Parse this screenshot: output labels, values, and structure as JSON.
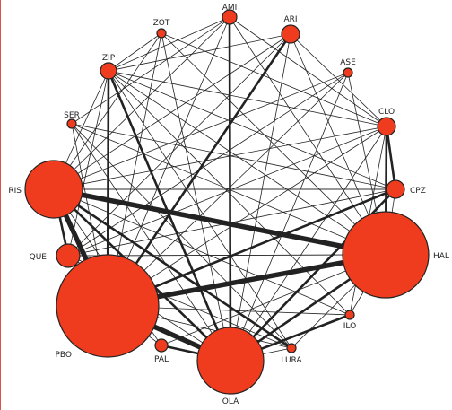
{
  "network": {
    "node_color": "#f03c1e",
    "edge_color": "#222222",
    "nodes": [
      {
        "id": "AMI",
        "label": "AMI"
      },
      {
        "id": "ARI",
        "label": "ARI"
      },
      {
        "id": "ZOT",
        "label": "ZOT"
      },
      {
        "id": "ASE",
        "label": "ASE"
      },
      {
        "id": "ZIP",
        "label": "ZIP"
      },
      {
        "id": "CLO",
        "label": "CLO"
      },
      {
        "id": "SER",
        "label": "SER"
      },
      {
        "id": "CPZ",
        "label": "CPZ"
      },
      {
        "id": "RIS",
        "label": "RIS"
      },
      {
        "id": "HAL",
        "label": "HAL"
      },
      {
        "id": "QUE",
        "label": "QUE"
      },
      {
        "id": "ILO",
        "label": "ILO"
      },
      {
        "id": "PBO",
        "label": "PBO"
      },
      {
        "id": "PAL",
        "label": "PAL"
      },
      {
        "id": "LURA",
        "label": "LURA"
      },
      {
        "id": "OLA",
        "label": "OLA"
      }
    ],
    "edges": [
      [
        "RIS",
        "HAL",
        3
      ],
      [
        "PBO",
        "HAL",
        3
      ],
      [
        "PBO",
        "OLA",
        3
      ],
      [
        "RIS",
        "PBO",
        3
      ],
      [
        "PBO",
        "CPZ",
        2
      ],
      [
        "OLA",
        "HAL",
        2
      ],
      [
        "PBO",
        "ARI",
        2
      ],
      [
        "PBO",
        "ZIP",
        2
      ],
      [
        "RIS",
        "OLA",
        2
      ],
      [
        "QUE",
        "PBO",
        2
      ],
      [
        "RIS",
        "QUE",
        2
      ],
      [
        "OLA",
        "ILO",
        2
      ],
      [
        "OLA",
        "CPZ",
        2
      ],
      [
        "AMI",
        "OLA",
        2
      ],
      [
        "ZIP",
        "OLA",
        2
      ],
      [
        "PAL",
        "OLA",
        2
      ],
      [
        "CLO",
        "HAL",
        2
      ],
      [
        "CLO",
        "CPZ",
        2
      ],
      [
        "RIS",
        "LURA",
        2
      ],
      [
        "OLA",
        "ARI",
        1
      ],
      [
        "AMI",
        "ZIP",
        1
      ],
      [
        "AMI",
        "SER",
        1
      ],
      [
        "AMI",
        "RIS",
        1
      ],
      [
        "AMI",
        "CLO",
        1
      ],
      [
        "AMI",
        "HAL",
        1
      ],
      [
        "AMI",
        "PBO",
        1
      ],
      [
        "ARI",
        "ZIP",
        1
      ],
      [
        "ARI",
        "RIS",
        1
      ],
      [
        "ARI",
        "QUE",
        1
      ],
      [
        "ARI",
        "HAL",
        1
      ],
      [
        "ARI",
        "CLO",
        1
      ],
      [
        "ZOT",
        "RIS",
        1
      ],
      [
        "ZOT",
        "HAL",
        1
      ],
      [
        "ZOT",
        "CLO",
        1
      ],
      [
        "ZOT",
        "OLA",
        1
      ],
      [
        "ZOT",
        "PBO",
        1
      ],
      [
        "ZOT",
        "ZIP",
        1
      ],
      [
        "ASE",
        "RIS",
        1
      ],
      [
        "ASE",
        "PBO",
        1
      ],
      [
        "ASE",
        "OLA",
        1
      ],
      [
        "ASE",
        "HAL",
        1
      ],
      [
        "ASE",
        "QUE",
        1
      ],
      [
        "ZIP",
        "HAL",
        1
      ],
      [
        "ZIP",
        "CLO",
        1
      ],
      [
        "ZIP",
        "CPZ",
        1
      ],
      [
        "ZIP",
        "RIS",
        1
      ],
      [
        "ZIP",
        "QUE",
        1
      ],
      [
        "ZIP",
        "ILO",
        1
      ],
      [
        "ZIP",
        "LURA",
        1
      ],
      [
        "CLO",
        "RIS",
        1
      ],
      [
        "CLO",
        "PBO",
        1
      ],
      [
        "CLO",
        "QUE",
        1
      ],
      [
        "CLO",
        "OLA",
        1
      ],
      [
        "CLO",
        "ILO",
        1
      ],
      [
        "SER",
        "HAL",
        1
      ],
      [
        "SER",
        "OLA",
        1
      ],
      [
        "SER",
        "PBO",
        1
      ],
      [
        "SER",
        "CPZ",
        1
      ],
      [
        "SER",
        "LURA",
        1
      ],
      [
        "CPZ",
        "RIS",
        1
      ],
      [
        "CPZ",
        "QUE",
        1
      ],
      [
        "CPZ",
        "HAL",
        1
      ],
      [
        "RIS",
        "CPZ",
        1
      ],
      [
        "RIS",
        "ILO",
        1
      ],
      [
        "RIS",
        "PAL",
        1
      ],
      [
        "HAL",
        "QUE",
        1
      ],
      [
        "HAL",
        "ILO",
        1
      ],
      [
        "HAL",
        "LURA",
        1
      ],
      [
        "QUE",
        "OLA",
        1
      ],
      [
        "QUE",
        "LURA",
        1
      ],
      [
        "QUE",
        "HAL",
        1
      ],
      [
        "PBO",
        "ILO",
        1
      ],
      [
        "PBO",
        "LURA",
        1
      ],
      [
        "PBO",
        "PAL",
        1
      ],
      [
        "OLA",
        "LURA",
        1
      ],
      [
        "HAL",
        "PAL",
        1
      ]
    ]
  }
}
